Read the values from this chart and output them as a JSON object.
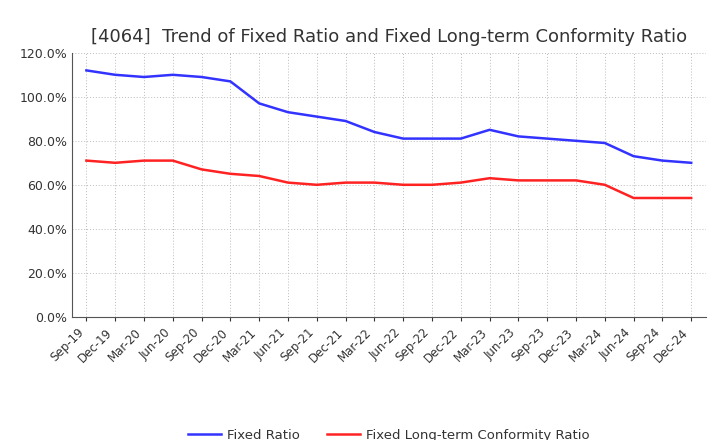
{
  "title": "[4064]  Trend of Fixed Ratio and Fixed Long-term Conformity Ratio",
  "x_labels": [
    "Sep-19",
    "Dec-19",
    "Mar-20",
    "Jun-20",
    "Sep-20",
    "Dec-20",
    "Mar-21",
    "Jun-21",
    "Sep-21",
    "Dec-21",
    "Mar-22",
    "Jun-22",
    "Sep-22",
    "Dec-22",
    "Mar-23",
    "Jun-23",
    "Sep-23",
    "Dec-23",
    "Mar-24",
    "Jun-24",
    "Sep-24",
    "Dec-24"
  ],
  "fixed_ratio": [
    1.12,
    1.1,
    1.09,
    1.1,
    1.09,
    1.07,
    0.97,
    0.93,
    0.91,
    0.89,
    0.84,
    0.81,
    0.81,
    0.81,
    0.85,
    0.82,
    0.81,
    0.8,
    0.79,
    0.73,
    0.71,
    0.7
  ],
  "fixed_lt_ratio": [
    0.71,
    0.7,
    0.71,
    0.71,
    0.67,
    0.65,
    0.64,
    0.61,
    0.6,
    0.61,
    0.61,
    0.6,
    0.6,
    0.61,
    0.63,
    0.62,
    0.62,
    0.62,
    0.6,
    0.54,
    0.54,
    0.54
  ],
  "fixed_ratio_color": "#3333FF",
  "fixed_lt_ratio_color": "#FF2222",
  "ylim_min": 0.0,
  "ylim_max": 1.2,
  "yticks": [
    0.0,
    0.2,
    0.4,
    0.6,
    0.8,
    1.0,
    1.2
  ],
  "ytick_labels": [
    "0.0%",
    "20.0%",
    "40.0%",
    "60.0%",
    "80.0%",
    "100.0%",
    "120.0%"
  ],
  "background_color": "#FFFFFF",
  "grid_color": "#BBBBBB",
  "title_color": "#333333",
  "legend_fixed_ratio": "Fixed Ratio",
  "legend_fixed_lt_ratio": "Fixed Long-term Conformity Ratio",
  "title_fontsize": 13,
  "axis_label_fontsize": 8.5,
  "ytick_fontsize": 9,
  "line_width": 1.8
}
